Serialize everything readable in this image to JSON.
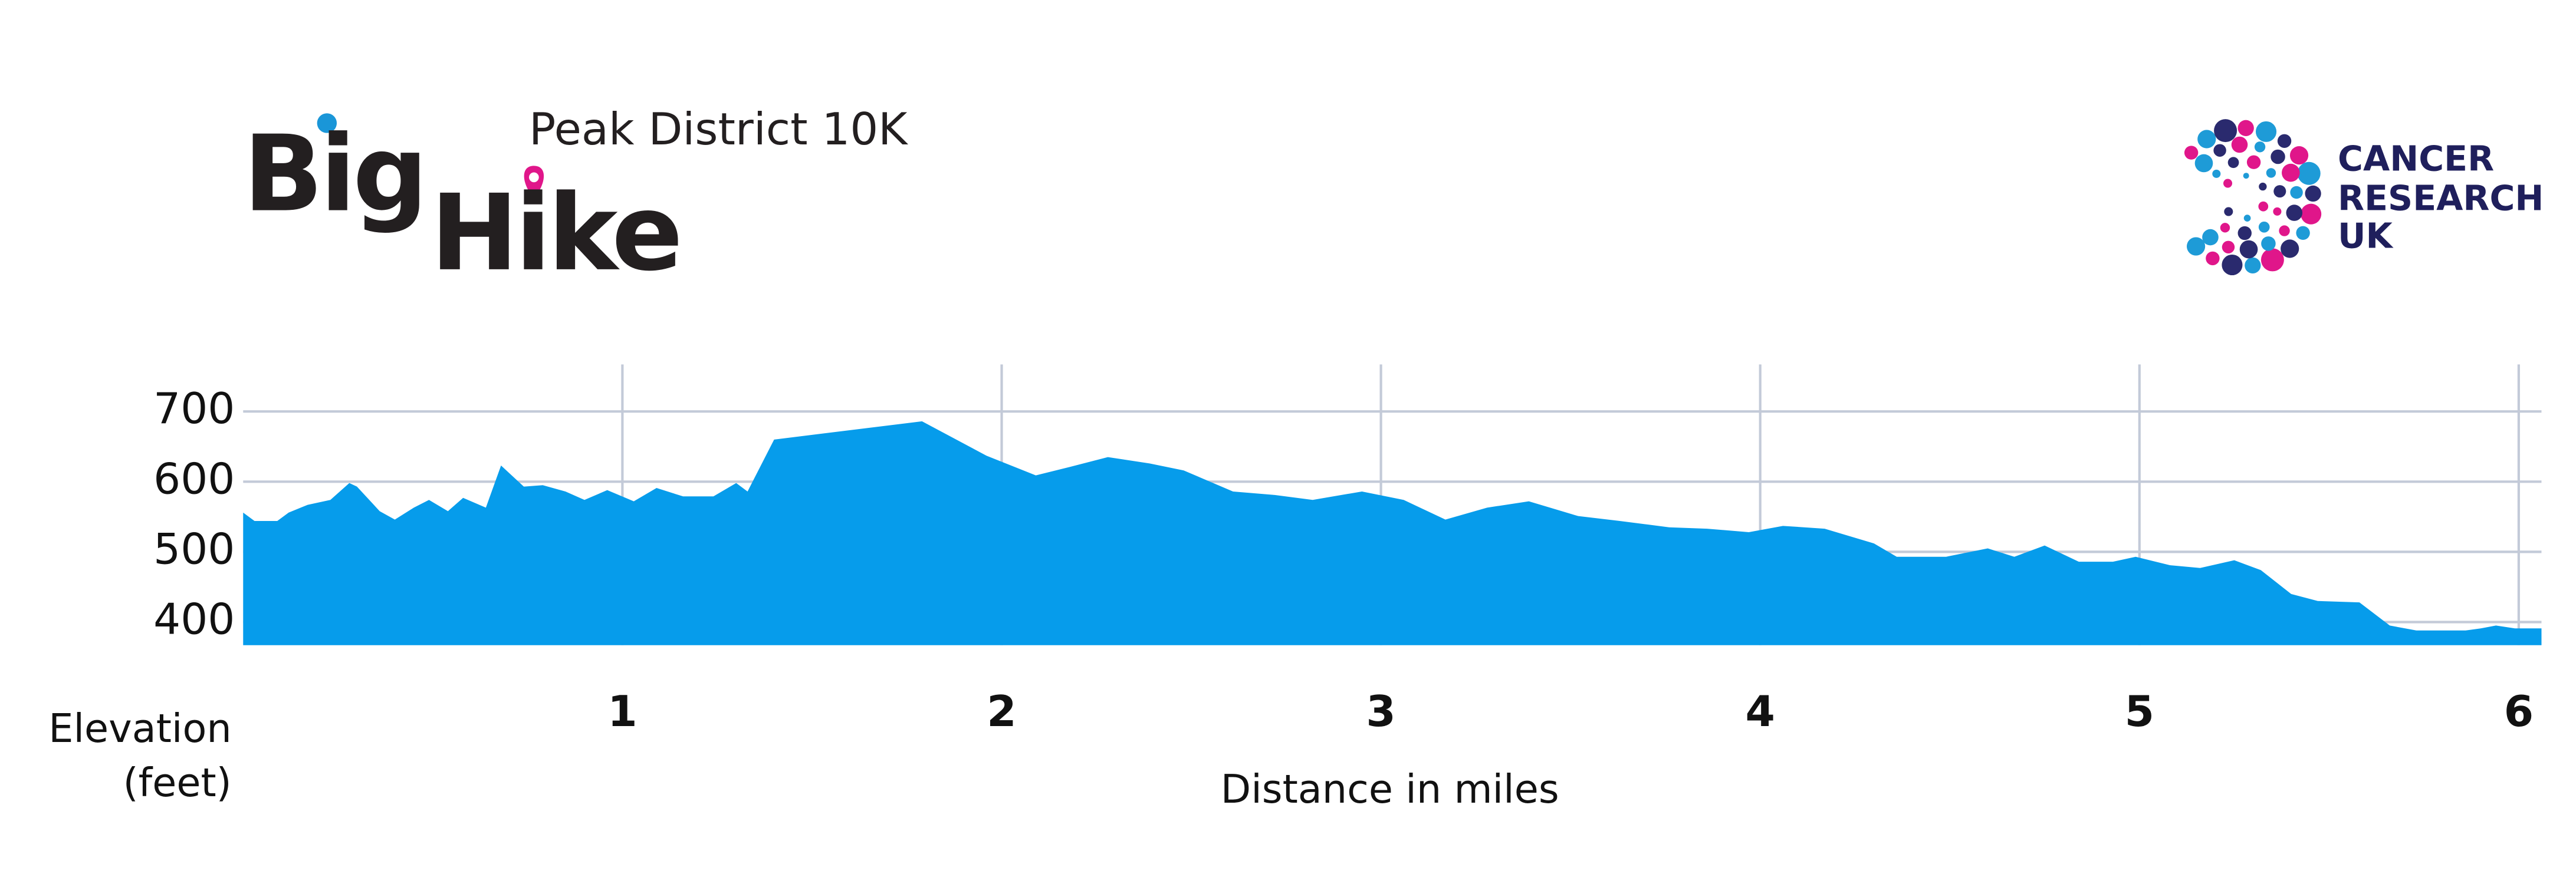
{
  "chart_data": {
    "type": "area",
    "title": "Peak District 10K",
    "x_label": "Distance in miles",
    "y_label": "Elevation (feet)",
    "x": [
      0,
      0.03,
      0.09,
      0.12,
      0.17,
      0.23,
      0.28,
      0.3,
      0.36,
      0.4,
      0.45,
      0.49,
      0.54,
      0.58,
      0.64,
      0.68,
      0.74,
      0.79,
      0.85,
      0.9,
      0.96,
      1.03,
      1.09,
      1.16,
      1.24,
      1.3,
      1.33,
      1.4,
      1.79,
      1.96,
      2.09,
      2.18,
      2.28,
      2.39,
      2.48,
      2.61,
      2.72,
      2.82,
      2.95,
      3.06,
      3.17,
      3.28,
      3.39,
      3.52,
      3.63,
      3.76,
      3.86,
      3.97,
      4.06,
      4.17,
      4.3,
      4.36,
      4.49,
      4.6,
      4.67,
      4.75,
      4.84,
      4.93,
      4.99,
      5.08,
      5.16,
      5.25,
      5.32,
      5.4,
      5.47,
      5.58,
      5.66,
      5.73,
      5.86,
      5.9,
      5.94,
      5.99,
      6.06
    ],
    "values": [
      556,
      544,
      544,
      556,
      567,
      574,
      598,
      593,
      558,
      546,
      563,
      574,
      558,
      577,
      563,
      623,
      593,
      595,
      586,
      574,
      588,
      572,
      591,
      579,
      579,
      598,
      586,
      660,
      686,
      637,
      609,
      621,
      635,
      626,
      616,
      586,
      581,
      574,
      586,
      574,
      546,
      563,
      572,
      551,
      544,
      535,
      533,
      528,
      537,
      533,
      512,
      493,
      493,
      505,
      493,
      509,
      486,
      486,
      493,
      481,
      477,
      488,
      474,
      440,
      430,
      428,
      395,
      388,
      388,
      391,
      395,
      391,
      391
    ],
    "color": "#069ceb",
    "xlim": [
      0,
      6.06
    ],
    "ylim": [
      367,
      767
    ],
    "xticks": [
      1,
      2,
      3,
      4,
      5,
      6
    ],
    "yticks": [
      400,
      500,
      600,
      700
    ],
    "grid": true
  },
  "logos": {
    "big": "Big",
    "hike": "Hike",
    "charity": "CANCER RESEARCH UK"
  }
}
